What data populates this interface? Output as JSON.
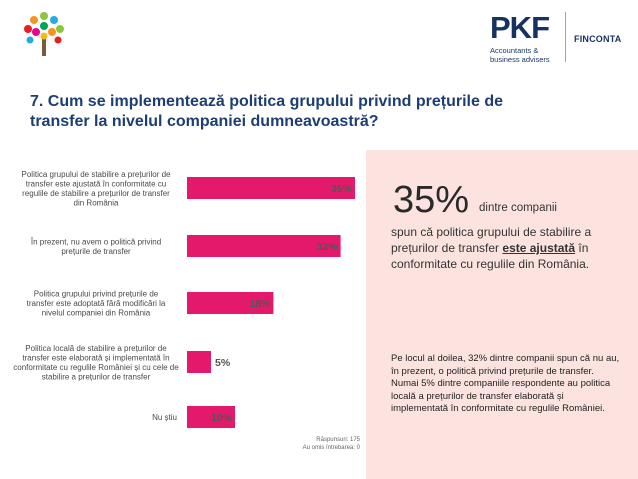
{
  "header": {
    "pkf_mark": "PKF",
    "pkf_sub_line1": "Accountants &",
    "pkf_sub_line2": "business advisers",
    "partner": "FINCONTA"
  },
  "title": {
    "line1": "7. Cum se implementează politica grupului privind prețurile de",
    "line2": "transfer la nivelul companiei dumneavoastră?"
  },
  "chart_data": {
    "type": "bar",
    "orientation": "horizontal",
    "title": "",
    "xlabel": "",
    "ylabel": "",
    "xlim": [
      0,
      35
    ],
    "bar_color": "#e5196b",
    "categories": [
      [
        "Politica grupului de stabilire a prețurilor de",
        "transfer este ajustată în conformitate cu",
        "regulile de stabilire a prețurilor de transfer",
        "din România"
      ],
      [
        "În prezent, nu avem o politică privind",
        "prețurile de transfer"
      ],
      [
        "Politica grupului privind prețurile de",
        "transfer este adoptată fără modificări la",
        "nivelul companiei din România"
      ],
      [
        "Politica locală de stabilire a prețurilor de",
        "transfer este elaborată și implementată în",
        "conformitate cu regulile României și cu cele de",
        "stabilire a prețurilor de transfer"
      ],
      [
        "Nu știu"
      ]
    ],
    "values": [
      35,
      32,
      18,
      5,
      10
    ],
    "value_labels": [
      "35%",
      "32%",
      "18%",
      "5%",
      "10%"
    ]
  },
  "response_count": {
    "line1": "Răspunsuri: 175",
    "line2": "Au omis întrebarea: 0"
  },
  "side_panel": {
    "big_percent": "35%",
    "big_suffix": "dintre companii",
    "main_before": "spun că politica grupului de stabilire a prețurilor de transfer ",
    "main_highlight": "este ajustată",
    "main_after": " în conformitate cu regulile din România.",
    "second": "Pe locul al doilea, 32% dintre companii spun că nu au, în prezent, o politică privind prețurile de transfer. Numai 5% dintre companiile respondente au politica locală a prețurilor de transfer elaborată și implementată în conformitate cu regulile României."
  },
  "colors": {
    "accent": "#e5196b",
    "title": "#1d3e72",
    "panel": "#fde3e0"
  }
}
